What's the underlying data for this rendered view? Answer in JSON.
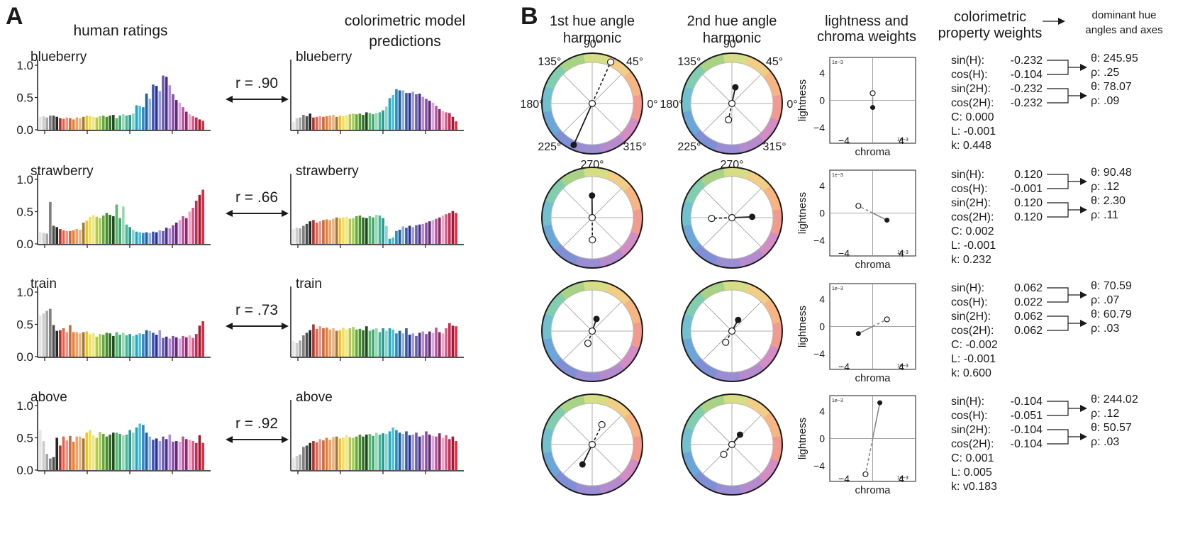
{
  "panel_letters": [
    "A",
    "B"
  ],
  "headers": {
    "human_ratings": "human ratings",
    "model_line1": "colorimetric model",
    "model_line2": "predictions",
    "h1_line1": "1st hue angle",
    "h1_line2": "harmonic",
    "h2_line1": "2nd hue angle",
    "h2_line2": "harmonic",
    "lc_line1": "lightness and",
    "lc_line2": "chroma weights",
    "cp_line1": "colorimetric",
    "cp_line2": "property weights",
    "dom_line1": "dominant hue",
    "dom_line2": "angles and axes"
  },
  "angle_labels": [
    "90°",
    "45°",
    "0°",
    "315°",
    "270°",
    "225°",
    "180°",
    "135°"
  ],
  "colors": {
    "bar_palette": [
      "#e6e6e6",
      "#cccccc",
      "#a6a6a6",
      "#7f7f7f",
      "#4d4d4d",
      "#262626",
      "#b3342c",
      "#e4644a",
      "#f0958a",
      "#c96a3f",
      "#ee7a2b",
      "#f5a06a",
      "#e8b57a",
      "#9c7a3c",
      "#f3c32e",
      "#f4e04a",
      "#e9e98a",
      "#b9c64a",
      "#9fd15c",
      "#6aa83f",
      "#4a8f2e",
      "#2f6e2a",
      "#1d4d1e",
      "#5bb96c",
      "#3fa872",
      "#9dd7b1",
      "#43b59a",
      "#2a9a8e",
      "#8fd0cf",
      "#1fa9b8",
      "#52bfe3",
      "#2f8ac6",
      "#1f5f9c",
      "#95aedb",
      "#3b58b5",
      "#2b2f8f",
      "#9a9dd9",
      "#6a5cae",
      "#4b2f86",
      "#b48bd0",
      "#8a4fa8",
      "#5e2a72",
      "#d9a6d9",
      "#b8559c",
      "#8b2a6a",
      "#f0a6c3",
      "#e0578a",
      "#c42d52",
      "#9e1b33",
      "#e8293a"
    ],
    "wheel_stops": [
      "#f29a8d",
      "#f6b582",
      "#f2cd86",
      "#d6dd84",
      "#a9d384",
      "#80cdb0",
      "#70c0d0",
      "#6ba6d9",
      "#7f8fd6",
      "#9b8dd3",
      "#b58bce",
      "#d48cc5",
      "#f29a8d"
    ]
  },
  "chart_data": [
    {
      "type": "bar",
      "panel": "A",
      "ylim": [
        0,
        1.0
      ],
      "yticks": [
        "0.0",
        "0.5",
        "1.0"
      ],
      "series": [
        {
          "name": "blueberry",
          "human": [
            0.2,
            0.21,
            0.19,
            0.22,
            0.22,
            0.2,
            0.18,
            0.17,
            0.19,
            0.18,
            0.16,
            0.19,
            0.18,
            0.2,
            0.22,
            0.21,
            0.2,
            0.19,
            0.21,
            0.22,
            0.2,
            0.22,
            0.23,
            0.18,
            0.22,
            0.24,
            0.22,
            0.23,
            0.25,
            0.38,
            0.37,
            0.35,
            0.56,
            0.48,
            0.7,
            0.68,
            0.6,
            0.84,
            0.82,
            0.69,
            0.55,
            0.46,
            0.42,
            0.35,
            0.28,
            0.24,
            0.21,
            0.19,
            0.16,
            0.14
          ],
          "model": [
            0.12,
            0.18,
            0.19,
            0.23,
            0.21,
            0.25,
            0.19,
            0.2,
            0.21,
            0.2,
            0.21,
            0.22,
            0.23,
            0.2,
            0.22,
            0.21,
            0.23,
            0.24,
            0.25,
            0.24,
            0.25,
            0.23,
            0.27,
            0.26,
            0.24,
            0.26,
            0.27,
            0.3,
            0.36,
            0.49,
            0.54,
            0.63,
            0.61,
            0.61,
            0.57,
            0.57,
            0.59,
            0.55,
            0.56,
            0.51,
            0.48,
            0.45,
            0.42,
            0.37,
            0.32,
            0.29,
            0.27,
            0.26,
            0.2,
            0.13
          ]
        },
        {
          "name": "strawberry",
          "human": [
            0.19,
            0.17,
            0.16,
            0.65,
            0.28,
            0.26,
            0.23,
            0.21,
            0.2,
            0.2,
            0.21,
            0.23,
            0.22,
            0.33,
            0.36,
            0.42,
            0.45,
            0.42,
            0.4,
            0.44,
            0.48,
            0.45,
            0.43,
            0.61,
            0.4,
            0.58,
            0.3,
            0.26,
            0.22,
            0.19,
            0.18,
            0.17,
            0.18,
            0.17,
            0.19,
            0.18,
            0.21,
            0.2,
            0.25,
            0.24,
            0.29,
            0.33,
            0.37,
            0.43,
            0.4,
            0.5,
            0.56,
            0.67,
            0.76,
            0.84
          ],
          "model": [
            0.23,
            0.25,
            0.24,
            0.28,
            0.31,
            0.35,
            0.37,
            0.33,
            0.35,
            0.37,
            0.38,
            0.37,
            0.39,
            0.41,
            0.4,
            0.41,
            0.42,
            0.39,
            0.4,
            0.43,
            0.44,
            0.41,
            0.4,
            0.43,
            0.41,
            0.45,
            0.44,
            0.4,
            0.28,
            0.08,
            0.1,
            0.2,
            0.22,
            0.27,
            0.25,
            0.28,
            0.26,
            0.29,
            0.3,
            0.31,
            0.33,
            0.35,
            0.37,
            0.39,
            0.41,
            0.44,
            0.46,
            0.48,
            0.51,
            0.48
          ]
        },
        {
          "name": "train",
          "human": [
            0.64,
            0.67,
            0.71,
            0.74,
            0.49,
            0.4,
            0.41,
            0.44,
            0.38,
            0.49,
            0.38,
            0.38,
            0.36,
            0.38,
            0.39,
            0.35,
            0.37,
            0.31,
            0.35,
            0.34,
            0.37,
            0.36,
            0.32,
            0.38,
            0.34,
            0.37,
            0.33,
            0.35,
            0.32,
            0.34,
            0.36,
            0.35,
            0.41,
            0.4,
            0.37,
            0.34,
            0.41,
            0.29,
            0.31,
            0.28,
            0.32,
            0.3,
            0.28,
            0.32,
            0.3,
            0.33,
            0.29,
            0.35,
            0.48,
            0.55
          ],
          "model": [
            0.24,
            0.21,
            0.25,
            0.33,
            0.37,
            0.41,
            0.5,
            0.43,
            0.47,
            0.44,
            0.45,
            0.42,
            0.44,
            0.4,
            0.41,
            0.45,
            0.42,
            0.44,
            0.46,
            0.42,
            0.43,
            0.41,
            0.47,
            0.4,
            0.42,
            0.44,
            0.38,
            0.44,
            0.4,
            0.44,
            0.42,
            0.36,
            0.4,
            0.36,
            0.44,
            0.34,
            0.36,
            0.32,
            0.37,
            0.39,
            0.35,
            0.39,
            0.37,
            0.45,
            0.38,
            0.36,
            0.44,
            0.52,
            0.48,
            0.47
          ]
        },
        {
          "name": "above",
          "human": [
            0.62,
            0.45,
            0.25,
            0.18,
            0.2,
            0.5,
            0.38,
            0.52,
            0.46,
            0.53,
            0.44,
            0.52,
            0.52,
            0.49,
            0.58,
            0.62,
            0.54,
            0.5,
            0.59,
            0.56,
            0.52,
            0.55,
            0.58,
            0.58,
            0.56,
            0.54,
            0.55,
            0.62,
            0.58,
            0.66,
            0.72,
            0.7,
            0.58,
            0.52,
            0.47,
            0.49,
            0.45,
            0.52,
            0.48,
            0.55,
            0.44,
            0.45,
            0.44,
            0.52,
            0.48,
            0.47,
            0.45,
            0.42,
            0.54,
            0.42
          ],
          "model": [
            0.19,
            0.22,
            0.24,
            0.36,
            0.38,
            0.42,
            0.45,
            0.43,
            0.48,
            0.46,
            0.5,
            0.47,
            0.51,
            0.52,
            0.49,
            0.5,
            0.54,
            0.51,
            0.5,
            0.52,
            0.55,
            0.52,
            0.55,
            0.56,
            0.53,
            0.58,
            0.55,
            0.57,
            0.56,
            0.6,
            0.66,
            0.62,
            0.58,
            0.56,
            0.6,
            0.54,
            0.55,
            0.58,
            0.52,
            0.54,
            0.6,
            0.55,
            0.53,
            0.52,
            0.57,
            0.5,
            0.54,
            0.48,
            0.52,
            0.45
          ]
        }
      ],
      "r_values": [
        "r = .90",
        "r = .66",
        "r = .73",
        "r = .92"
      ]
    },
    {
      "type": "scatter",
      "panel": "B",
      "subtype": "hue harmonics (polar)",
      "note": "each row: filled = positive pole, open = negative pole, angle in degrees",
      "rows": [
        {
          "h1": {
            "theta": 245.95,
            "rho": 0.25
          },
          "h2": {
            "theta": 78.07,
            "rho": 0.09
          }
        },
        {
          "h1": {
            "theta": 90.48,
            "rho": 0.12
          },
          "h2": {
            "theta": 2.3,
            "rho": 0.11
          }
        },
        {
          "h1": {
            "theta": 70.59,
            "rho": 0.07
          },
          "h2": {
            "theta": 60.79,
            "rho": 0.03
          }
        },
        {
          "h1": {
            "theta": 244.02,
            "rho": 0.12
          },
          "h2": {
            "theta": 50.57,
            "rho": 0.03
          }
        }
      ]
    },
    {
      "type": "scatter",
      "panel": "B",
      "subtype": "lightness vs chroma weights",
      "xlabel": "chroma",
      "ylabel": "lightness",
      "xlim": [
        -6,
        6
      ],
      "ylim": [
        -6,
        6
      ],
      "ticks": [
        "4",
        "0",
        "−4",
        "−4",
        "4"
      ],
      "scale": "1e−3",
      "points": [
        {
          "chroma": 0.0,
          "lightness": -0.001
        },
        {
          "chroma": 0.002,
          "lightness": -0.001
        },
        {
          "chroma": -0.002,
          "lightness": -0.001
        },
        {
          "chroma": 0.001,
          "lightness": 0.005
        }
      ]
    }
  ],
  "weights": [
    {
      "sinH": "sin(H):",
      "sinH_v": "-0.232",
      "cosH": "cos(H):",
      "cosH_v": "-0.104",
      "sin2H": "sin(2H):",
      "sin2H_v": "-0.232",
      "cos2H": "cos(2H):",
      "cos2H_v": "-0.232",
      "C": "C: 0.000",
      "L": "L: -0.001",
      "k": "k: 0.448",
      "theta1": "245.95",
      "rho1": ".25",
      "theta2": "78.07",
      "rho2": ".09"
    },
    {
      "sinH": "sin(H):",
      "sinH_v": "0.120",
      "cosH": "cos(H):",
      "cosH_v": "-0.001",
      "sin2H": "sin(2H):",
      "sin2H_v": "0.120",
      "cos2H": "cos(2H):",
      "cos2H_v": "0.120",
      "C": "C: 0.002",
      "L": "L: -0.001",
      "k": "k: 0.232",
      "theta1": "90.48",
      "rho1": ".12",
      "theta2": "2.30",
      "rho2": ".11"
    },
    {
      "sinH": "sin(H):",
      "sinH_v": "0.062",
      "cosH": "cos(H):",
      "cosH_v": "0.022",
      "sin2H": "sin(2H):",
      "sin2H_v": "0.062",
      "cos2H": "cos(2H):",
      "cos2H_v": "0.062",
      "C": "C: -0.002",
      "L": "L: -0.001",
      "k": "k: 0.600",
      "theta1": "70.59",
      "rho1": ".07",
      "theta2": "60.79",
      "rho2": ".03"
    },
    {
      "sinH": "sin(H):",
      "sinH_v": "-0.104",
      "cosH": "cos(H):",
      "cosH_v": "-0.051",
      "sin2H": "sin(2H):",
      "sin2H_v": "-0.104",
      "cos2H": "cos(2H):",
      "cos2H_v": "-0.104",
      "C": "C: 0.001",
      "L": "L: 0.005",
      "k": "k: v0.183",
      "theta1": "244.02",
      "rho1": ".12",
      "theta2": "50.57",
      "rho2": ".03"
    }
  ]
}
